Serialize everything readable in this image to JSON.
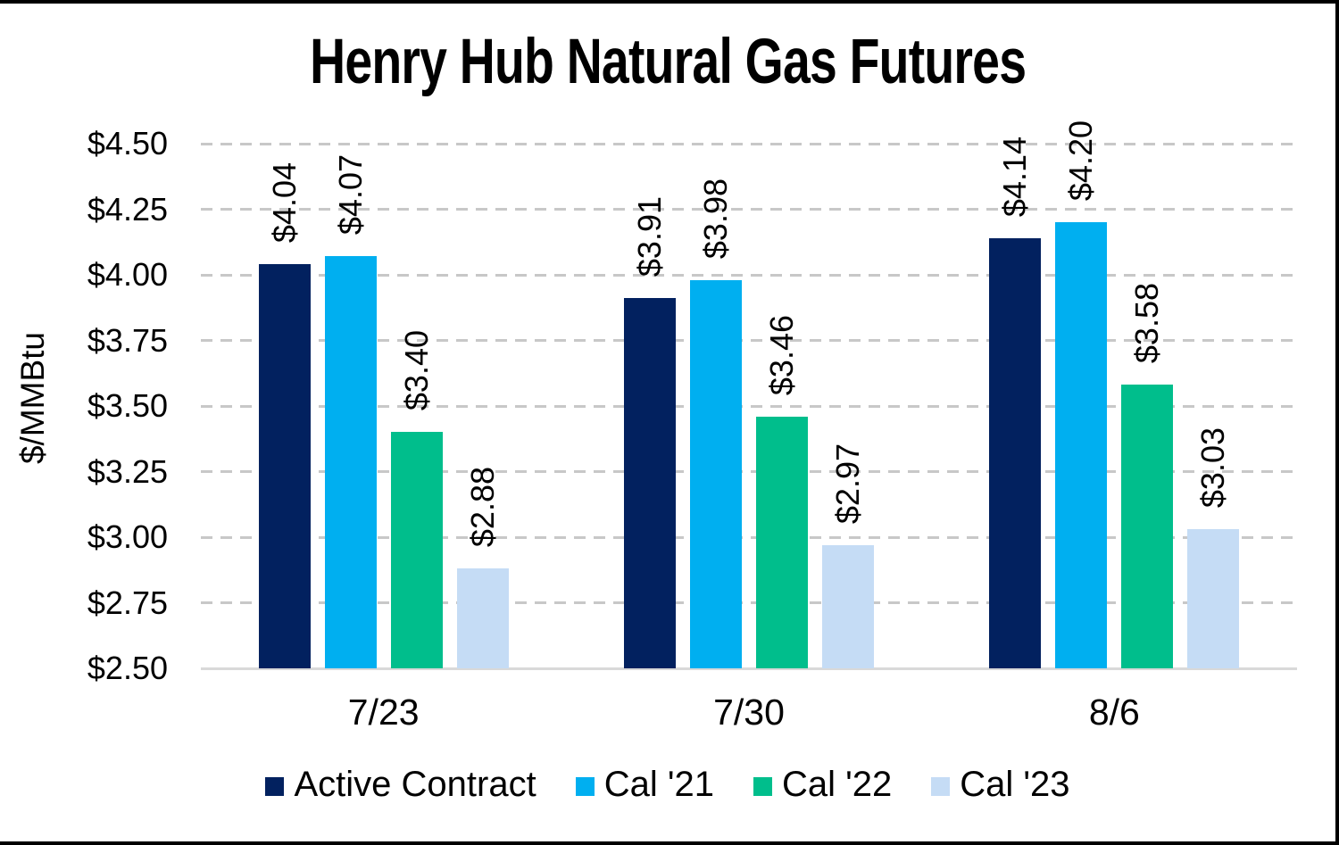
{
  "chart_data": {
    "type": "bar",
    "title": "Henry Hub Natural Gas Futures",
    "ylabel": "$/MMBtu",
    "value_prefix": "$",
    "categories": [
      "7/23",
      "7/30",
      "8/6"
    ],
    "series": [
      {
        "name": "Active Contract",
        "color": "#02215F",
        "values": [
          4.04,
          3.91,
          4.14
        ]
      },
      {
        "name": "Cal '21",
        "color": "#00AFF0",
        "values": [
          4.07,
          3.98,
          4.2
        ]
      },
      {
        "name": "Cal '22",
        "color": "#00BE8C",
        "values": [
          3.4,
          3.46,
          3.58
        ]
      },
      {
        "name": "Cal '23",
        "color": "#C5DCF5",
        "values": [
          2.88,
          2.97,
          3.03
        ]
      }
    ],
    "data_labels": [
      [
        "$4.04",
        "$4.07",
        "$3.40",
        "$2.88"
      ],
      [
        "$3.91",
        "$3.98",
        "$3.46",
        "$2.97"
      ],
      [
        "$4.14",
        "$4.20",
        "$3.58",
        "$3.03"
      ]
    ],
    "ylim": [
      2.5,
      4.5
    ],
    "ytick_step": 0.25,
    "yticks": [
      {
        "value": 4.5,
        "label": "$4.50"
      },
      {
        "value": 4.25,
        "label": "$4.25"
      },
      {
        "value": 4.0,
        "label": "$4.00"
      },
      {
        "value": 3.75,
        "label": "$3.75"
      },
      {
        "value": 3.5,
        "label": "$3.50"
      },
      {
        "value": 3.25,
        "label": "$3.25"
      },
      {
        "value": 3.0,
        "label": "$3.00"
      },
      {
        "value": 2.75,
        "label": "$2.75"
      },
      {
        "value": 2.5,
        "label": "$2.50"
      }
    ],
    "grid": "horizontal-dashed",
    "legend_position": "bottom",
    "gridline_color": "#C8C8C8",
    "axis_line_color": "#D9D9D9",
    "text_color": "#000000"
  }
}
